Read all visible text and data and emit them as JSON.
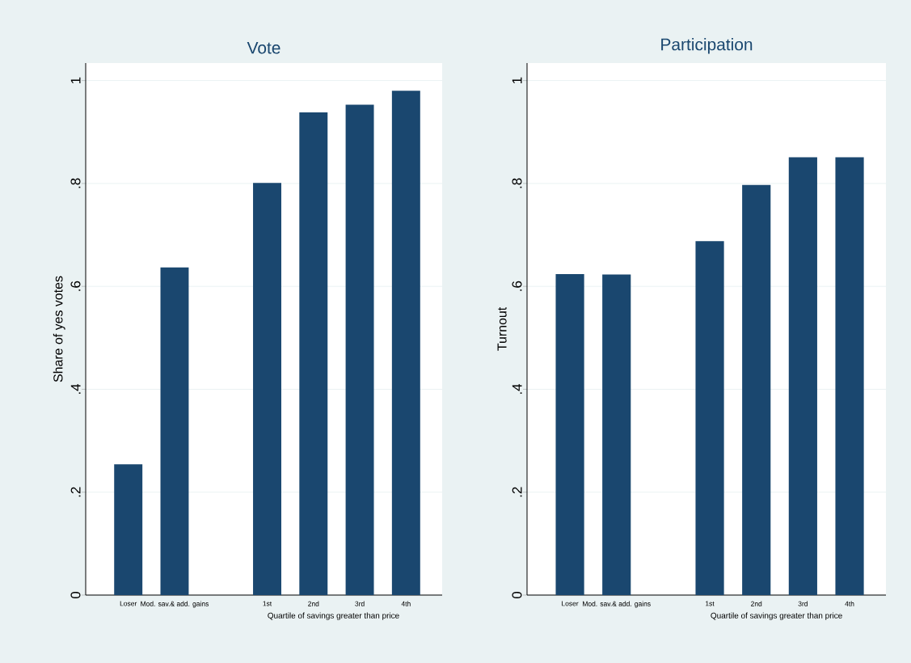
{
  "chart_data": [
    {
      "type": "bar",
      "title": "Vote",
      "xlabel": "Quartile of savings greater than price",
      "ylabel": "Share of yes votes",
      "categories": [
        "Loser",
        "Mod. sav.& add. gains",
        null,
        "1st",
        "2nd",
        "3rd",
        "4th"
      ],
      "values": [
        0.254,
        0.637,
        null,
        0.801,
        0.938,
        0.953,
        0.98
      ],
      "color": "#1a476f",
      "ylim": [
        0,
        1.034
      ],
      "yticks": [
        0,
        {
          "value": 0.2,
          "label": ".2"
        },
        {
          "value": 0.4,
          "label": ".4"
        },
        {
          "value": 0.6,
          "label": ".6"
        },
        {
          "value": 0.8,
          "label": ".8"
        },
        1
      ],
      "grid": "y"
    },
    {
      "type": "bar",
      "title": "Participation",
      "xlabel": "Quartile of savings greater than price",
      "ylabel": "Turnout",
      "categories": [
        "Loser",
        "Mod. sav.& add. gains",
        null,
        "1st",
        "2nd",
        "3rd",
        "4th"
      ],
      "values": [
        0.624,
        0.623,
        null,
        0.688,
        0.797,
        0.851,
        0.851
      ],
      "color": "#1a476f",
      "ylim": [
        0,
        1.034
      ],
      "yticks": [
        0,
        {
          "value": 0.2,
          "label": ".2"
        },
        {
          "value": 0.4,
          "label": ".4"
        },
        {
          "value": 0.6,
          "label": ".6"
        },
        {
          "value": 0.8,
          "label": ".8"
        },
        1
      ],
      "grid": "y"
    }
  ]
}
